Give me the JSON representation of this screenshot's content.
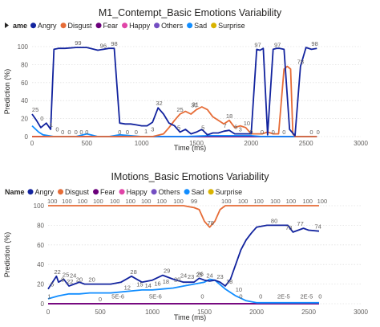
{
  "charts": [
    {
      "title": "M1_Contempt_Basic Emotions Variability",
      "legend_label": "ame",
      "legend_items": [
        {
          "name": "Angry",
          "color": "#12239E"
        },
        {
          "name": "Disgust",
          "color": "#E66C37"
        },
        {
          "name": "Fear",
          "color": "#6B007B"
        },
        {
          "name": "Happy",
          "color": "#E044A7"
        },
        {
          "name": "Others",
          "color": "#744EC2"
        },
        {
          "name": "Sad",
          "color": "#118DFF"
        },
        {
          "name": "Surprise",
          "color": "#D9B300"
        }
      ],
      "xlabel": "Time (ms)",
      "ylabel": "Prediction (%)"
    },
    {
      "title": "IMotions_Basic Emotions Variability",
      "legend_label": "Name",
      "legend_items": [
        {
          "name": "Angry",
          "color": "#12239E"
        },
        {
          "name": "Disgust",
          "color": "#E66C37"
        },
        {
          "name": "Fear",
          "color": "#6B007B"
        },
        {
          "name": "Happy",
          "color": "#E044A7"
        },
        {
          "name": "Others",
          "color": "#744EC2"
        },
        {
          "name": "Sad",
          "color": "#118DFF"
        },
        {
          "name": "Surprise",
          "color": "#D9B300"
        }
      ],
      "xlabel": "Time (ms)",
      "ylabel": "Prediction (%)"
    }
  ],
  "chart_data": [
    {
      "type": "line",
      "title": "M1_Contempt_Basic Emotions Variability",
      "xlabel": "Time (ms)",
      "ylabel": "Prediction (%)",
      "xlim": [
        0,
        3000
      ],
      "ylim": [
        0,
        100
      ],
      "xticks": [
        0,
        500,
        1000,
        1500,
        2000,
        2500,
        3000
      ],
      "yticks": [
        0,
        20,
        40,
        60,
        80,
        100
      ],
      "grid": true,
      "legend_position": "top-left",
      "series": [
        {
          "name": "Angry",
          "color": "#12239E",
          "x": [
            0,
            40,
            80,
            130,
            170,
            200,
            240,
            300,
            400,
            500,
            600,
            700,
            750,
            800,
            850,
            900,
            950,
            1000,
            1050,
            1100,
            1150,
            1200,
            1250,
            1300,
            1350,
            1400,
            1450,
            1500,
            1550,
            1600,
            1650,
            1700,
            1750,
            1800,
            1850,
            1900,
            1950,
            2000,
            2050,
            2080,
            2110,
            2150,
            2200,
            2230,
            2260,
            2300,
            2350,
            2400,
            2450,
            2500,
            2550,
            2600
          ],
          "y": [
            25,
            18,
            10,
            15,
            8,
            97,
            98,
            98,
            99,
            99,
            96,
            98,
            98,
            15,
            14,
            14,
            13,
            12,
            12,
            16,
            32,
            25,
            15,
            12,
            5,
            8,
            3,
            5,
            8,
            2,
            4,
            4,
            6,
            7,
            3,
            3,
            3,
            3,
            97,
            96,
            98,
            2,
            97,
            98,
            98,
            97,
            8,
            1,
            78,
            99,
            97,
            98
          ]
        },
        {
          "name": "Disgust",
          "color": "#E66C37",
          "x": [
            0,
            1100,
            1200,
            1250,
            1300,
            1350,
            1400,
            1450,
            1500,
            1550,
            1600,
            1650,
            1700,
            1750,
            1800,
            1850,
            1900,
            1950,
            2000,
            2050,
            2100,
            2150,
            2200,
            2250,
            2300,
            2330,
            2360,
            2380,
            2400,
            2600
          ],
          "y": [
            0,
            0,
            3,
            10,
            18,
            25,
            28,
            25,
            30,
            33,
            30,
            22,
            18,
            14,
            18,
            10,
            12,
            10,
            3,
            3,
            3,
            5,
            3,
            3,
            75,
            78,
            75,
            3,
            0,
            0
          ]
        },
        {
          "name": "Fear",
          "color": "#6B007B",
          "x": [
            0,
            2600
          ],
          "y": [
            0,
            0
          ]
        },
        {
          "name": "Happy",
          "color": "#E044A7",
          "x": [
            0,
            2600
          ],
          "y": [
            0,
            0
          ]
        },
        {
          "name": "Others",
          "color": "#744EC2",
          "x": [
            0,
            2600
          ],
          "y": [
            0,
            0
          ]
        },
        {
          "name": "Sad",
          "color": "#118DFF",
          "x": [
            0,
            60,
            100,
            150,
            200,
            400,
            500,
            600,
            700,
            800,
            1000,
            1200,
            1400,
            1600,
            1800,
            2000,
            2100,
            2200,
            2300,
            2500,
            2600
          ],
          "y": [
            12,
            5,
            2,
            1,
            0,
            0,
            3,
            0,
            0,
            2,
            0,
            0,
            0,
            1,
            1,
            1,
            0,
            0,
            0,
            0,
            0
          ]
        },
        {
          "name": "Surprise",
          "color": "#D9B300",
          "x": [
            0,
            2600
          ],
          "y": [
            0,
            0
          ]
        }
      ],
      "data_labels": [
        {
          "x": 30,
          "y": 25,
          "text": "25"
        },
        {
          "x": 90,
          "y": 15,
          "text": "0"
        },
        {
          "x": 175,
          "y": 8,
          "text": "1"
        },
        {
          "x": 230,
          "y": 3,
          "text": "0"
        },
        {
          "x": 280,
          "y": 0,
          "text": "0"
        },
        {
          "x": 340,
          "y": 0,
          "text": "0"
        },
        {
          "x": 400,
          "y": 0,
          "text": "0"
        },
        {
          "x": 450,
          "y": 0,
          "text": "0"
        },
        {
          "x": 500,
          "y": 0,
          "text": "0"
        },
        {
          "x": 420,
          "y": 99,
          "text": "99"
        },
        {
          "x": 650,
          "y": 96,
          "text": "96"
        },
        {
          "x": 750,
          "y": 98,
          "text": "98"
        },
        {
          "x": 800,
          "y": 0,
          "text": "0"
        },
        {
          "x": 870,
          "y": 0,
          "text": "0"
        },
        {
          "x": 950,
          "y": 0,
          "text": "0"
        },
        {
          "x": 1040,
          "y": 1,
          "text": "1"
        },
        {
          "x": 1100,
          "y": 3,
          "text": "3"
        },
        {
          "x": 1160,
          "y": 32,
          "text": "32"
        },
        {
          "x": 1350,
          "y": 25,
          "text": "25"
        },
        {
          "x": 1480,
          "y": 30,
          "text": "30"
        },
        {
          "x": 1340,
          "y": 5,
          "text": "5"
        },
        {
          "x": 1490,
          "y": 31,
          "text": "31"
        },
        {
          "x": 1560,
          "y": 5,
          "text": "5"
        },
        {
          "x": 1800,
          "y": 18,
          "text": "18"
        },
        {
          "x": 1760,
          "y": 7,
          "text": "7"
        },
        {
          "x": 1860,
          "y": 6,
          "text": "6"
        },
        {
          "x": 1960,
          "y": 10,
          "text": "10"
        },
        {
          "x": 1900,
          "y": 3,
          "text": "3"
        },
        {
          "x": 2060,
          "y": 97,
          "text": "97"
        },
        {
          "x": 2240,
          "y": 97,
          "text": "97"
        },
        {
          "x": 2450,
          "y": 78,
          "text": "78"
        },
        {
          "x": 2580,
          "y": 98,
          "text": "98"
        },
        {
          "x": 2000,
          "y": 0,
          "text": "0"
        },
        {
          "x": 2100,
          "y": 0,
          "text": "0"
        },
        {
          "x": 2200,
          "y": 0,
          "text": "0"
        },
        {
          "x": 2300,
          "y": 0,
          "text": "0"
        },
        {
          "x": 2550,
          "y": 0,
          "text": "0"
        },
        {
          "x": 2610,
          "y": 0,
          "text": "0"
        }
      ]
    },
    {
      "type": "line",
      "title": "IMotions_Basic Emotions Variability",
      "xlabel": "Time (ms)",
      "ylabel": "Prediction (%)",
      "xlim": [
        0,
        3000
      ],
      "ylim": [
        0,
        100
      ],
      "xticks": [
        0,
        500,
        1000,
        1500,
        2000,
        2500,
        3000
      ],
      "yticks": [
        0,
        20,
        40,
        60,
        80,
        100
      ],
      "grid": true,
      "legend_position": "top-left",
      "series": [
        {
          "name": "Angry",
          "color": "#12239E",
          "x": [
            0,
            80,
            100,
            150,
            200,
            250,
            300,
            350,
            400,
            500,
            600,
            700,
            800,
            900,
            1000,
            1100,
            1200,
            1300,
            1400,
            1450,
            1500,
            1550,
            1600,
            1650,
            1700,
            1750,
            1800,
            1850,
            1900,
            1950,
            2000,
            2100,
            2200,
            2300,
            2350,
            2400,
            2450,
            2500,
            2600
          ],
          "y": [
            15,
            28,
            22,
            25,
            18,
            20,
            22,
            20,
            20,
            20,
            20,
            22,
            28,
            22,
            24,
            29,
            25,
            22,
            22,
            26,
            24,
            23,
            24,
            22,
            18,
            25,
            40,
            55,
            65,
            72,
            78,
            80,
            80,
            80,
            73,
            75,
            77,
            75,
            74
          ]
        },
        {
          "name": "Disgust",
          "color": "#E66C37",
          "x": [
            0,
            1100,
            1200,
            1300,
            1350,
            1400,
            1450,
            1500,
            1550,
            1600,
            1650,
            1700,
            1800,
            2000,
            2600
          ],
          "y": [
            100,
            100,
            100,
            100,
            99,
            98,
            96,
            84,
            78,
            84,
            96,
            100,
            100,
            100,
            100
          ]
        },
        {
          "name": "Fear",
          "color": "#6B007B",
          "x": [
            0,
            2600
          ],
          "y": [
            0,
            0
          ]
        },
        {
          "name": "Happy",
          "color": "#E044A7",
          "x": [
            0,
            2600
          ],
          "y": [
            0,
            0
          ]
        },
        {
          "name": "Others",
          "color": "#744EC2",
          "x": [
            0,
            2600
          ],
          "y": [
            0,
            0
          ]
        },
        {
          "name": "Sad",
          "color": "#118DFF",
          "x": [
            0,
            100,
            200,
            300,
            400,
            500,
            600,
            700,
            800,
            900,
            1000,
            1100,
            1200,
            1300,
            1400,
            1500,
            1550,
            1600,
            1700,
            1800,
            1900,
            2000,
            2100,
            2300,
            2600
          ],
          "y": [
            5,
            8,
            10,
            10,
            11,
            11,
            11,
            12,
            13,
            14,
            14,
            15,
            16,
            18,
            20,
            22,
            25,
            24,
            15,
            8,
            3,
            1,
            1,
            1,
            1
          ]
        },
        {
          "name": "Surprise",
          "color": "#D9B300",
          "x": [
            0,
            2600
          ],
          "y": [
            0,
            0
          ]
        }
      ],
      "data_labels": [
        {
          "x": 40,
          "y": 100,
          "text": "100"
        },
        {
          "x": 180,
          "y": 100,
          "text": "100"
        },
        {
          "x": 330,
          "y": 100,
          "text": "100"
        },
        {
          "x": 480,
          "y": 100,
          "text": "100"
        },
        {
          "x": 640,
          "y": 100,
          "text": "100"
        },
        {
          "x": 790,
          "y": 100,
          "text": "100"
        },
        {
          "x": 940,
          "y": 100,
          "text": "100"
        },
        {
          "x": 1090,
          "y": 100,
          "text": "100"
        },
        {
          "x": 1250,
          "y": 100,
          "text": "100"
        },
        {
          "x": 1400,
          "y": 100,
          "text": "99"
        },
        {
          "x": 1560,
          "y": 78,
          "text": "78"
        },
        {
          "x": 1710,
          "y": 100,
          "text": "100"
        },
        {
          "x": 1870,
          "y": 100,
          "text": "100"
        },
        {
          "x": 2020,
          "y": 100,
          "text": "100"
        },
        {
          "x": 2180,
          "y": 100,
          "text": "100"
        },
        {
          "x": 2330,
          "y": 100,
          "text": "100"
        },
        {
          "x": 2490,
          "y": 100,
          "text": "100"
        },
        {
          "x": 2630,
          "y": 100,
          "text": "100"
        },
        {
          "x": 40,
          "y": 15,
          "text": "5"
        },
        {
          "x": 90,
          "y": 28,
          "text": "22"
        },
        {
          "x": 170,
          "y": 25,
          "text": "25"
        },
        {
          "x": 240,
          "y": 24,
          "text": "24"
        },
        {
          "x": 140,
          "y": 20,
          "text": "8"
        },
        {
          "x": 210,
          "y": 18,
          "text": "22"
        },
        {
          "x": 300,
          "y": 20,
          "text": "20"
        },
        {
          "x": 420,
          "y": 20,
          "text": "20"
        },
        {
          "x": 820,
          "y": 28,
          "text": "28"
        },
        {
          "x": 760,
          "y": 12,
          "text": "12"
        },
        {
          "x": 880,
          "y": 15,
          "text": "15"
        },
        {
          "x": 960,
          "y": 14,
          "text": "14"
        },
        {
          "x": 1050,
          "y": 16,
          "text": "16"
        },
        {
          "x": 1140,
          "y": 29,
          "text": "29"
        },
        {
          "x": 1130,
          "y": 18,
          "text": "18"
        },
        {
          "x": 1240,
          "y": 20,
          "text": "20"
        },
        {
          "x": 1300,
          "y": 24,
          "text": "24"
        },
        {
          "x": 1370,
          "y": 23,
          "text": "23"
        },
        {
          "x": 1460,
          "y": 26,
          "text": "26"
        },
        {
          "x": 1450,
          "y": 25,
          "text": "25"
        },
        {
          "x": 1550,
          "y": 24,
          "text": "24"
        },
        {
          "x": 1650,
          "y": 23,
          "text": "23"
        },
        {
          "x": 1740,
          "y": 18,
          "text": "18"
        },
        {
          "x": 1830,
          "y": 10,
          "text": "10"
        },
        {
          "x": 2170,
          "y": 80,
          "text": "80"
        },
        {
          "x": 2310,
          "y": 73,
          "text": "73"
        },
        {
          "x": 2420,
          "y": 77,
          "text": "77"
        },
        {
          "x": 2590,
          "y": 74,
          "text": "74"
        },
        {
          "x": 10,
          "y": 3,
          "text": "1"
        },
        {
          "x": 500,
          "y": 0,
          "text": "0"
        },
        {
          "x": 670,
          "y": 3,
          "text": "5E-6"
        },
        {
          "x": 1030,
          "y": 3,
          "text": "5E-6"
        },
        {
          "x": 1480,
          "y": 3,
          "text": "0"
        },
        {
          "x": 1850,
          "y": 3,
          "text": "0"
        },
        {
          "x": 2040,
          "y": 3,
          "text": "0"
        },
        {
          "x": 2260,
          "y": 3,
          "text": "2E-5"
        },
        {
          "x": 2480,
          "y": 3,
          "text": "2E-5"
        },
        {
          "x": 2610,
          "y": 3,
          "text": "0"
        }
      ]
    }
  ]
}
